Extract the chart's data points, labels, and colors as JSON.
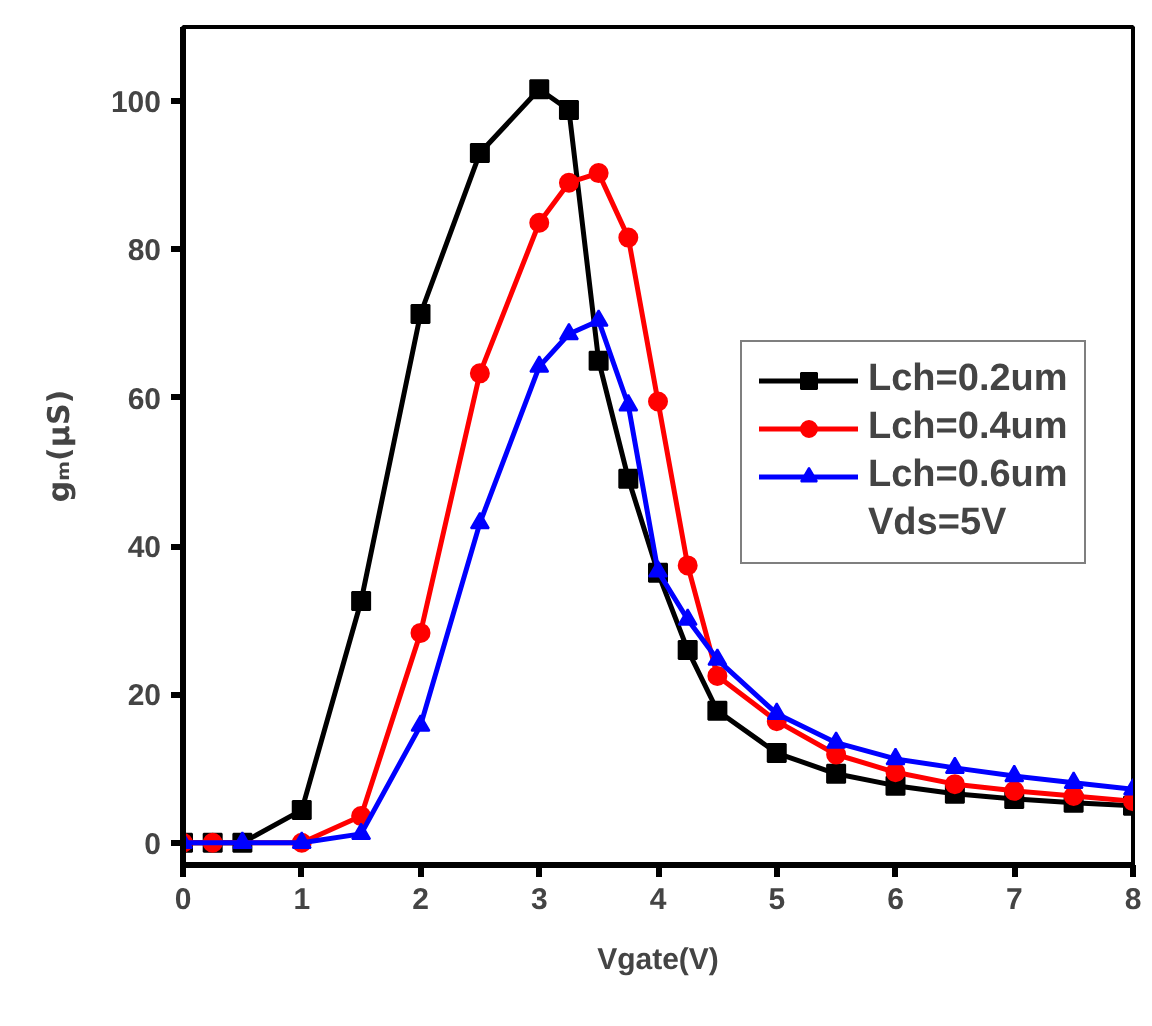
{
  "chart_data": {
    "type": "line",
    "xlabel": "Vgate(V)",
    "ylabel": "gₘ(µS)",
    "xlim": [
      0,
      8
    ],
    "ylim": [
      -3,
      110
    ],
    "xticks": [
      0,
      1,
      2,
      3,
      4,
      5,
      6,
      7,
      8
    ],
    "yticks": [
      0,
      20,
      40,
      60,
      80,
      100
    ],
    "line_style": "solid",
    "grid": false,
    "legend": "right",
    "annotations": [
      "Vds=5V"
    ],
    "series": [
      {
        "name": "Lch=0.2um",
        "color": "#000000",
        "marker": "square",
        "x": [
          0,
          0.25,
          0.5,
          1,
          1.5,
          2,
          2.5,
          3,
          3.25,
          3.5,
          3.75,
          4,
          4.25,
          4.5,
          5,
          5.5,
          6,
          6.5,
          7,
          7.5,
          8
        ],
        "values": [
          0,
          0,
          0,
          4.4,
          32.6,
          71.3,
          93,
          101.6,
          98.8,
          65,
          49.1,
          36.4,
          26,
          17.8,
          12.1,
          9.3,
          7.7,
          6.6,
          5.9,
          5.4,
          5.0
        ]
      },
      {
        "name": "Lch=0.4um",
        "color": "#ff0000",
        "marker": "circle",
        "x": [
          0,
          0.25,
          1,
          1.5,
          2,
          2.5,
          3,
          3.25,
          3.5,
          3.75,
          4,
          4.25,
          4.5,
          5,
          5.5,
          6,
          6.5,
          7,
          7.5,
          8
        ],
        "values": [
          0,
          0,
          0,
          3.6,
          28.3,
          63.3,
          83.6,
          89,
          90.3,
          81.6,
          59.5,
          37.4,
          22.5,
          16.4,
          11.9,
          9.5,
          7.9,
          7,
          6.3,
          5.6
        ]
      },
      {
        "name": "Lch=0.6um",
        "color": "#0000ff",
        "marker": "triangle",
        "x": [
          0,
          0.5,
          1,
          1.5,
          2,
          2.5,
          3,
          3.25,
          3.5,
          3.75,
          4,
          4.25,
          4.5,
          5,
          5.5,
          6,
          6.5,
          7,
          7.5,
          8
        ],
        "values": [
          0,
          0,
          0,
          1.2,
          15.8,
          43.1,
          64.2,
          68.6,
          70.4,
          59,
          36.6,
          30.1,
          24.7,
          17.4,
          13.5,
          11.3,
          10.1,
          9,
          8.1,
          7.2
        ]
      }
    ]
  }
}
